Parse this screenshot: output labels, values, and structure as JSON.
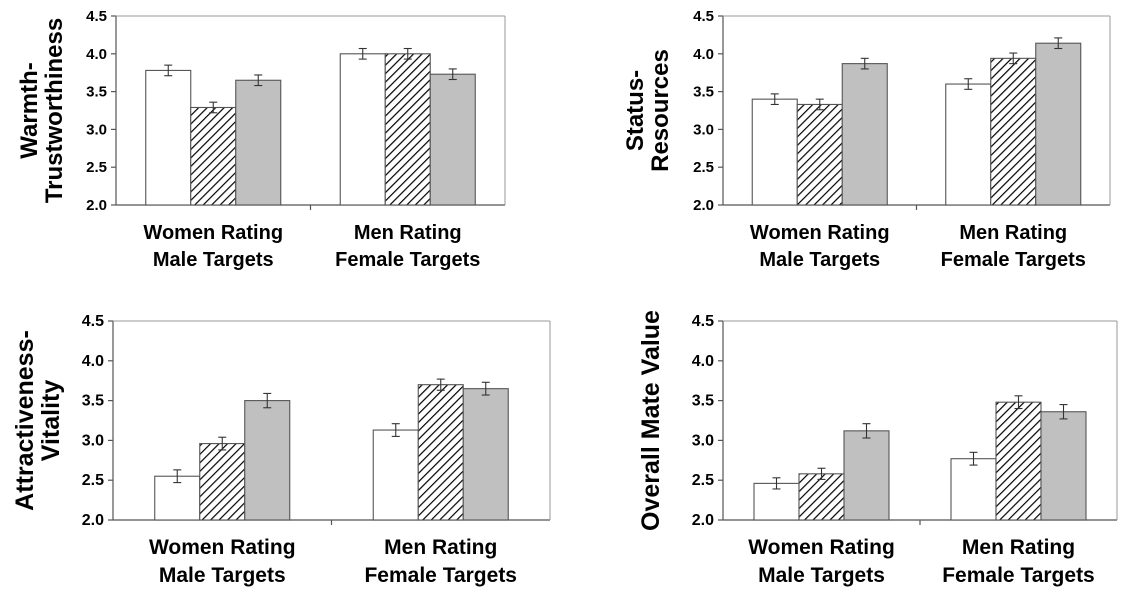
{
  "chart_data": [
    {
      "type": "bar",
      "ylabel": [
        "Warmth-",
        "Trustworthiness"
      ],
      "categories": [
        [
          "Women Rating",
          "Male Targets"
        ],
        [
          "Men Rating",
          "Female Targets"
        ]
      ],
      "ylim": [
        2.0,
        4.5
      ],
      "yticks": [
        "4.5",
        "4.0",
        "3.5",
        "3.0",
        "2.5",
        "2.0"
      ],
      "series": [
        {
          "fill": "white",
          "values": [
            3.78,
            4.0
          ],
          "errors": [
            0.07,
            0.07
          ]
        },
        {
          "fill": "hatched",
          "values": [
            3.29,
            4.0
          ],
          "errors": [
            0.07,
            0.07
          ]
        },
        {
          "fill": "gray",
          "values": [
            3.65,
            3.73
          ],
          "errors": [
            0.07,
            0.07
          ]
        }
      ]
    },
    {
      "type": "bar",
      "ylabel": [
        "Status-",
        "Resources"
      ],
      "categories": [
        [
          "Women Rating",
          "Male Targets"
        ],
        [
          "Men Rating",
          "Female Targets"
        ]
      ],
      "ylim": [
        2.0,
        4.5
      ],
      "yticks": [
        "4.5",
        "4.0",
        "3.5",
        "3.0",
        "2.5",
        "2.0"
      ],
      "series": [
        {
          "fill": "white",
          "values": [
            3.4,
            3.6
          ],
          "errors": [
            0.07,
            0.07
          ]
        },
        {
          "fill": "hatched",
          "values": [
            3.33,
            3.94
          ],
          "errors": [
            0.07,
            0.07
          ]
        },
        {
          "fill": "gray",
          "values": [
            3.87,
            4.14
          ],
          "errors": [
            0.07,
            0.07
          ]
        }
      ]
    },
    {
      "type": "bar",
      "ylabel": [
        "Attractiveness-",
        "Vitality"
      ],
      "categories": [
        [
          "Women Rating",
          "Male Targets"
        ],
        [
          "Men Rating",
          "Female Targets"
        ]
      ],
      "ylim": [
        2.0,
        4.5
      ],
      "yticks": [
        "4.5",
        "4.0",
        "3.5",
        "3.0",
        "2.5",
        "2.0"
      ],
      "series": [
        {
          "fill": "white",
          "values": [
            2.55,
            3.13
          ],
          "errors": [
            0.08,
            0.08
          ]
        },
        {
          "fill": "hatched",
          "values": [
            2.96,
            3.7
          ],
          "errors": [
            0.08,
            0.07
          ]
        },
        {
          "fill": "gray",
          "values": [
            3.5,
            3.65
          ],
          "errors": [
            0.09,
            0.08
          ]
        }
      ]
    },
    {
      "type": "bar",
      "ylabel": [
        "Overall Mate Value"
      ],
      "categories": [
        [
          "Women Rating",
          "Male Targets"
        ],
        [
          "Men Rating",
          "Female Targets"
        ]
      ],
      "ylim": [
        2.0,
        4.5
      ],
      "yticks": [
        "4.5",
        "4.0",
        "3.5",
        "3.0",
        "2.5",
        "2.0"
      ],
      "series": [
        {
          "fill": "white",
          "values": [
            2.46,
            2.77
          ],
          "errors": [
            0.07,
            0.08
          ]
        },
        {
          "fill": "hatched",
          "values": [
            2.58,
            3.48
          ],
          "errors": [
            0.07,
            0.08
          ]
        },
        {
          "fill": "gray",
          "values": [
            3.12,
            3.36
          ],
          "errors": [
            0.09,
            0.09
          ]
        }
      ]
    }
  ]
}
